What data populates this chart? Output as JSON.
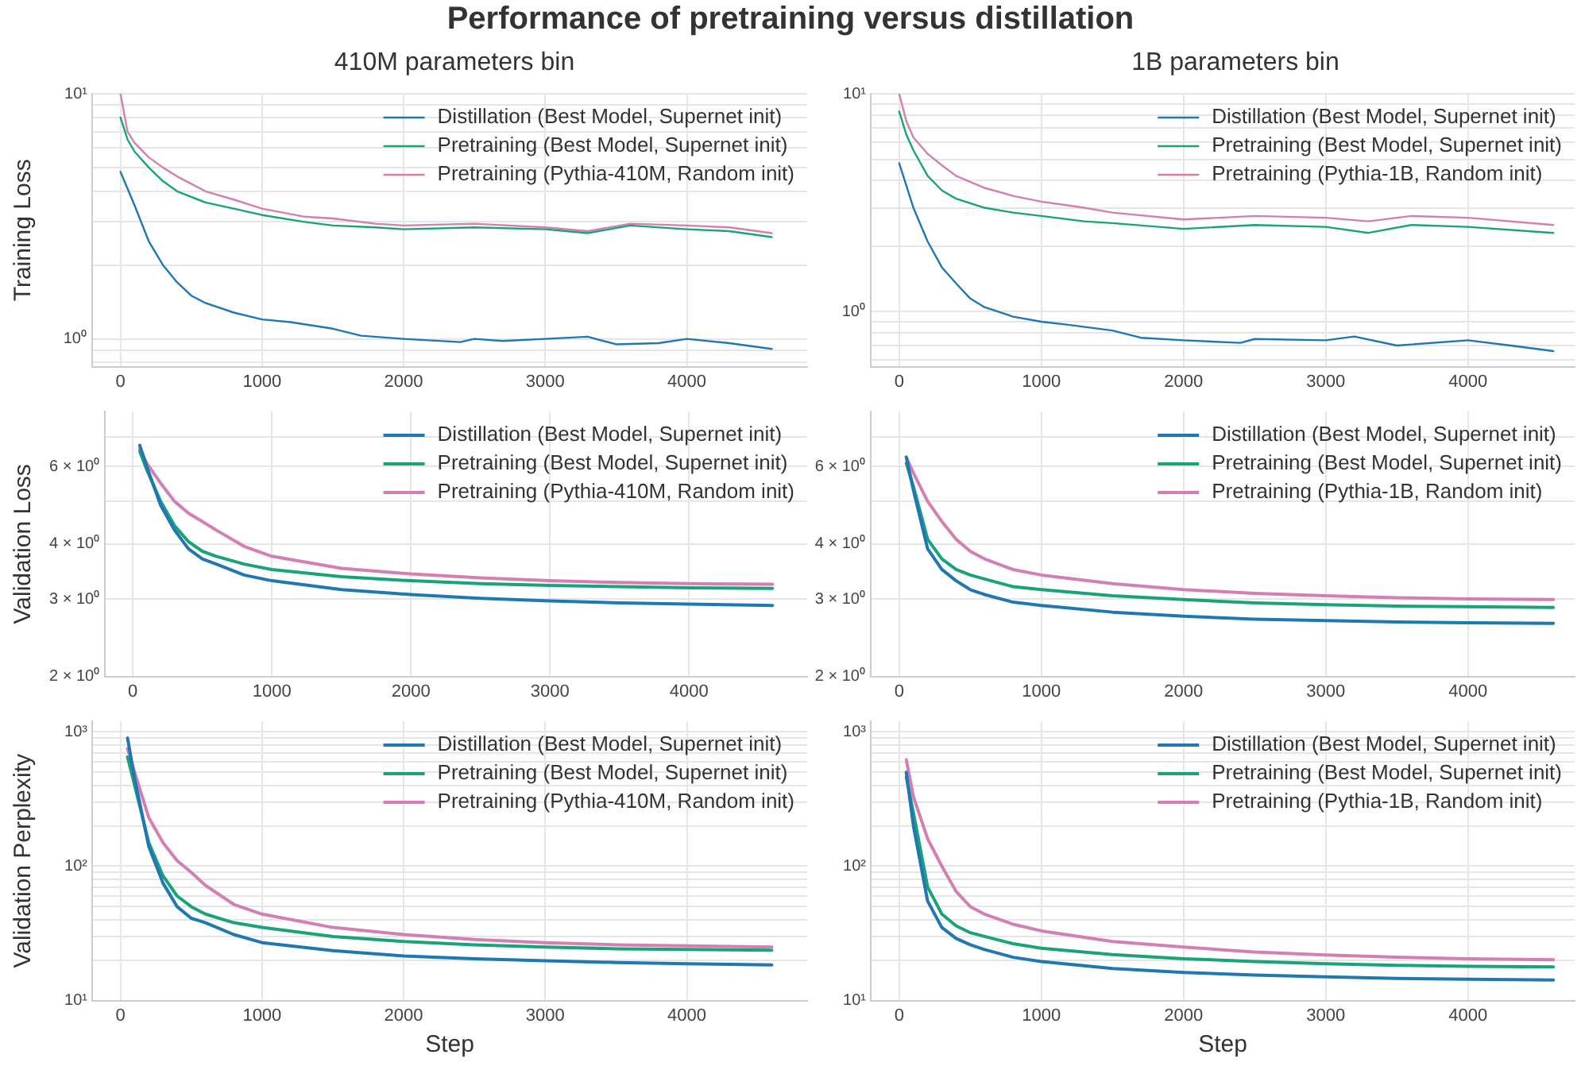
{
  "chart_data": [
    {
      "type": "line",
      "title": "Performance of pretraining versus distillation",
      "subtitle": "410M parameters bin",
      "ylabel": "Training Loss",
      "log": "y",
      "grid": true,
      "legend": "top right",
      "line_style": "solid",
      "marker": "none",
      "xlim": [
        -200,
        4850
      ],
      "xticks": [
        0,
        1000,
        2000,
        3000,
        4000
      ],
      "ylim": [
        0.77,
        10
      ],
      "yticks": [
        {
          "value": 0.8,
          "label": null
        },
        {
          "value": 0.9,
          "label": null
        },
        {
          "value": 1,
          "label": "10⁰"
        },
        {
          "value": 2,
          "label": null
        },
        {
          "value": 3,
          "label": null
        },
        {
          "value": 4,
          "label": null
        },
        {
          "value": 5,
          "label": null
        },
        {
          "value": 6,
          "label": null
        },
        {
          "value": 7,
          "label": null
        },
        {
          "value": 8,
          "label": null
        },
        {
          "value": 9,
          "label": null
        },
        {
          "value": 10,
          "label": "10¹"
        }
      ],
      "series": [
        {
          "name": "Distillation (Best Model, Supernet init)",
          "color": "#1f77b4",
          "x": [
            0,
            50,
            100,
            200,
            300,
            400,
            500,
            600,
            800,
            1000,
            1200,
            1500,
            1700,
            2000,
            2400,
            2500,
            2700,
            3000,
            3300,
            3500,
            3800,
            4000,
            4300,
            4600
          ],
          "values": [
            4.8,
            4.1,
            3.5,
            2.5,
            2.0,
            1.7,
            1.5,
            1.4,
            1.28,
            1.2,
            1.17,
            1.1,
            1.03,
            1.0,
            0.97,
            1.0,
            0.98,
            1.0,
            1.02,
            0.95,
            0.96,
            1.0,
            0.96,
            0.91
          ]
        },
        {
          "name": "Pretraining (Best Model, Supernet init)",
          "color": "#1aa37a",
          "x": [
            0,
            50,
            100,
            200,
            300,
            400,
            600,
            800,
            1000,
            1300,
            1500,
            1800,
            2000,
            2500,
            3000,
            3300,
            3600,
            4000,
            4300,
            4600
          ],
          "values": [
            8,
            6.5,
            5.8,
            5.0,
            4.4,
            4.0,
            3.6,
            3.4,
            3.2,
            3.0,
            2.9,
            2.85,
            2.8,
            2.85,
            2.8,
            2.7,
            2.9,
            2.8,
            2.75,
            2.6
          ]
        },
        {
          "name": "Pretraining (Pythia-410M, Random init)",
          "color": "#d37fb3",
          "x": [
            0,
            50,
            100,
            200,
            300,
            400,
            600,
            800,
            1000,
            1300,
            1500,
            1800,
            2000,
            2500,
            3000,
            3300,
            3600,
            4000,
            4300,
            4600
          ],
          "values": [
            10,
            7,
            6.3,
            5.5,
            5.0,
            4.6,
            4.0,
            3.7,
            3.4,
            3.15,
            3.1,
            2.95,
            2.9,
            2.95,
            2.85,
            2.75,
            2.95,
            2.9,
            2.85,
            2.7
          ]
        }
      ]
    },
    {
      "type": "line",
      "subtitle": "1B parameters bin",
      "log": "y",
      "grid": true,
      "legend": "top right",
      "line_style": "solid",
      "marker": "none",
      "xlim": [
        -200,
        4750
      ],
      "xticks": [
        0,
        1000,
        2000,
        3000,
        4000
      ],
      "ylim": [
        0.56,
        10
      ],
      "yticks": [
        {
          "value": 0.6,
          "label": null
        },
        {
          "value": 0.7,
          "label": null
        },
        {
          "value": 0.8,
          "label": null
        },
        {
          "value": 0.9,
          "label": null
        },
        {
          "value": 1,
          "label": "10⁰"
        },
        {
          "value": 2,
          "label": null
        },
        {
          "value": 3,
          "label": null
        },
        {
          "value": 4,
          "label": null
        },
        {
          "value": 5,
          "label": null
        },
        {
          "value": 6,
          "label": null
        },
        {
          "value": 7,
          "label": null
        },
        {
          "value": 8,
          "label": null
        },
        {
          "value": 9,
          "label": null
        },
        {
          "value": 10,
          "label": "10¹"
        }
      ],
      "series": [
        {
          "name": "Distillation (Best Model, Supernet init)",
          "color": "#1f77b4",
          "x": [
            0,
            50,
            100,
            200,
            300,
            400,
            500,
            600,
            800,
            1000,
            1200,
            1500,
            1700,
            2000,
            2400,
            2500,
            3000,
            3200,
            3500,
            4000,
            4300,
            4600
          ],
          "values": [
            4.8,
            3.8,
            3.0,
            2.1,
            1.6,
            1.35,
            1.15,
            1.05,
            0.95,
            0.9,
            0.87,
            0.82,
            0.76,
            0.74,
            0.72,
            0.75,
            0.74,
            0.77,
            0.7,
            0.74,
            0.7,
            0.66
          ]
        },
        {
          "name": "Pretraining (Best Model, Supernet init)",
          "color": "#1aa37a",
          "x": [
            0,
            50,
            100,
            200,
            300,
            400,
            600,
            800,
            1000,
            1300,
            1500,
            2000,
            2500,
            3000,
            3300,
            3600,
            4000,
            4600
          ],
          "values": [
            8.3,
            6.5,
            5.5,
            4.2,
            3.6,
            3.3,
            3.0,
            2.85,
            2.75,
            2.6,
            2.55,
            2.4,
            2.5,
            2.45,
            2.3,
            2.5,
            2.45,
            2.3
          ]
        },
        {
          "name": "Pretraining (Pythia-1B, Random init)",
          "color": "#d37fb3",
          "x": [
            0,
            50,
            100,
            200,
            300,
            400,
            600,
            800,
            1000,
            1300,
            1500,
            2000,
            2500,
            3000,
            3300,
            3600,
            4000,
            4600
          ],
          "values": [
            10,
            7.5,
            6.3,
            5.3,
            4.7,
            4.2,
            3.7,
            3.4,
            3.2,
            3.0,
            2.85,
            2.65,
            2.75,
            2.7,
            2.6,
            2.75,
            2.7,
            2.5
          ]
        }
      ]
    },
    {
      "type": "line",
      "ylabel": "Validation Loss",
      "log": "y",
      "grid": true,
      "legend": "top right",
      "line_style": "solid",
      "marker": "none",
      "xlim": [
        -200,
        4850
      ],
      "xticks": [
        0,
        1000,
        2000,
        3000,
        4000
      ],
      "ylim": [
        2,
        8
      ],
      "yticks": [
        {
          "value": 2,
          "label": "2 × 10⁰"
        },
        {
          "value": 3,
          "label": "3 × 10⁰"
        },
        {
          "value": 4,
          "label": "4 × 10⁰"
        },
        {
          "value": 5,
          "label": null
        },
        {
          "value": 6,
          "label": "6 × 10⁰"
        },
        {
          "value": 7,
          "label": null
        }
      ],
      "series": [
        {
          "name": "Distillation (Best Model, Supernet init)",
          "color": "#1f77b4",
          "x": [
            50,
            100,
            200,
            300,
            400,
            500,
            600,
            800,
            1000,
            1500,
            2000,
            2500,
            3000,
            3500,
            4000,
            4600
          ],
          "values": [
            6.7,
            6.0,
            4.9,
            4.3,
            3.9,
            3.7,
            3.6,
            3.4,
            3.3,
            3.15,
            3.07,
            3.01,
            2.97,
            2.94,
            2.92,
            2.9
          ]
        },
        {
          "name": "Pretraining (Best Model, Supernet init)",
          "color": "#1aa37a",
          "x": [
            50,
            100,
            200,
            300,
            400,
            500,
            600,
            800,
            1000,
            1500,
            2000,
            2500,
            3000,
            3500,
            4000,
            4600
          ],
          "values": [
            6.5,
            5.9,
            5.0,
            4.4,
            4.05,
            3.85,
            3.75,
            3.6,
            3.5,
            3.37,
            3.3,
            3.25,
            3.22,
            3.2,
            3.18,
            3.17
          ]
        },
        {
          "name": "Pretraining (Pythia-410M, Random init)",
          "color": "#d37fb3",
          "x": [
            50,
            100,
            200,
            300,
            400,
            500,
            600,
            800,
            1000,
            1500,
            2000,
            2500,
            3000,
            3500,
            4000,
            4600
          ],
          "values": [
            6.6,
            6.1,
            5.5,
            5.0,
            4.7,
            4.5,
            4.3,
            3.95,
            3.75,
            3.52,
            3.42,
            3.35,
            3.3,
            3.27,
            3.25,
            3.24
          ]
        }
      ]
    },
    {
      "type": "line",
      "log": "y",
      "grid": true,
      "legend": "top right",
      "line_style": "solid",
      "marker": "none",
      "xlim": [
        -200,
        4750
      ],
      "xticks": [
        0,
        1000,
        2000,
        3000,
        4000
      ],
      "ylim": [
        2,
        8
      ],
      "yticks": [
        {
          "value": 2,
          "label": "2 × 10⁰"
        },
        {
          "value": 3,
          "label": "3 × 10⁰"
        },
        {
          "value": 4,
          "label": "4 × 10⁰"
        },
        {
          "value": 5,
          "label": null
        },
        {
          "value": 6,
          "label": "6 × 10⁰"
        },
        {
          "value": 7,
          "label": null
        }
      ],
      "series": [
        {
          "name": "Distillation (Best Model, Supernet init)",
          "color": "#1f77b4",
          "x": [
            50,
            100,
            200,
            300,
            400,
            500,
            600,
            800,
            1000,
            1500,
            2000,
            2500,
            3000,
            3500,
            4000,
            4600
          ],
          "values": [
            6.3,
            5.3,
            3.9,
            3.5,
            3.3,
            3.15,
            3.07,
            2.95,
            2.9,
            2.8,
            2.74,
            2.7,
            2.68,
            2.66,
            2.65,
            2.64
          ]
        },
        {
          "name": "Pretraining (Best Model, Supernet init)",
          "color": "#1aa37a",
          "x": [
            50,
            100,
            200,
            300,
            400,
            500,
            600,
            800,
            1000,
            1500,
            2000,
            2500,
            3000,
            3500,
            4000,
            4600
          ],
          "values": [
            6.1,
            5.4,
            4.1,
            3.7,
            3.5,
            3.4,
            3.33,
            3.2,
            3.15,
            3.05,
            2.99,
            2.94,
            2.91,
            2.89,
            2.88,
            2.87
          ]
        },
        {
          "name": "Pretraining (Pythia-1B, Random init)",
          "color": "#d37fb3",
          "x": [
            50,
            100,
            200,
            300,
            400,
            500,
            600,
            800,
            1000,
            1500,
            2000,
            2500,
            3000,
            3500,
            4000,
            4600
          ],
          "values": [
            6.3,
            5.8,
            5.0,
            4.5,
            4.1,
            3.85,
            3.7,
            3.5,
            3.4,
            3.25,
            3.15,
            3.09,
            3.05,
            3.02,
            3.0,
            2.99
          ]
        }
      ]
    },
    {
      "type": "line",
      "xlabel": "Step",
      "ylabel": "Validation Perplexity",
      "log": "y",
      "grid": true,
      "legend": "top right",
      "line_style": "solid",
      "marker": "none",
      "xlim": [
        -200,
        4850
      ],
      "xticks": [
        0,
        1000,
        2000,
        3000,
        4000
      ],
      "ylim": [
        10,
        1200
      ],
      "yticks": [
        {
          "value": 10,
          "label": "10¹"
        },
        {
          "value": 20,
          "label": null
        },
        {
          "value": 30,
          "label": null
        },
        {
          "value": 40,
          "label": null
        },
        {
          "value": 50,
          "label": null
        },
        {
          "value": 60,
          "label": null
        },
        {
          "value": 70,
          "label": null
        },
        {
          "value": 80,
          "label": null
        },
        {
          "value": 90,
          "label": null
        },
        {
          "value": 100,
          "label": "10²"
        },
        {
          "value": 200,
          "label": null
        },
        {
          "value": 300,
          "label": null
        },
        {
          "value": 400,
          "label": null
        },
        {
          "value": 500,
          "label": null
        },
        {
          "value": 600,
          "label": null
        },
        {
          "value": 700,
          "label": null
        },
        {
          "value": 800,
          "label": null
        },
        {
          "value": 900,
          "label": null
        },
        {
          "value": 1000,
          "label": "10³"
        }
      ],
      "series": [
        {
          "name": "Distillation (Best Model, Supernet init)",
          "color": "#1f77b4",
          "x": [
            50,
            100,
            200,
            300,
            400,
            500,
            600,
            800,
            1000,
            1500,
            2000,
            2500,
            3000,
            3500,
            4000,
            4600
          ],
          "values": [
            900,
            450,
            140,
            75,
            50,
            41,
            38,
            31,
            27,
            23.5,
            21.5,
            20.5,
            19.8,
            19.2,
            18.8,
            18.4
          ]
        },
        {
          "name": "Pretraining (Best Model, Supernet init)",
          "color": "#1aa37a",
          "x": [
            50,
            100,
            200,
            300,
            400,
            500,
            600,
            800,
            1000,
            1500,
            2000,
            2500,
            3000,
            3500,
            4000,
            4600
          ],
          "values": [
            650,
            400,
            150,
            85,
            60,
            50,
            44,
            38,
            35,
            30,
            27.5,
            26,
            25,
            24.3,
            24,
            23.7
          ]
        },
        {
          "name": "Pretraining (Pythia-410M, Random init)",
          "color": "#d37fb3",
          "x": [
            50,
            100,
            200,
            300,
            400,
            500,
            600,
            800,
            1000,
            1500,
            2000,
            2500,
            3000,
            3500,
            4000,
            4600
          ],
          "values": [
            750,
            500,
            230,
            150,
            110,
            90,
            72,
            52,
            44,
            35,
            31,
            28.5,
            27,
            26,
            25.5,
            25
          ]
        }
      ]
    },
    {
      "type": "line",
      "xlabel": "Step",
      "log": "y",
      "grid": true,
      "legend": "top right",
      "line_style": "solid",
      "marker": "none",
      "xlim": [
        -200,
        4750
      ],
      "xticks": [
        0,
        1000,
        2000,
        3000,
        4000
      ],
      "ylim": [
        10,
        1200
      ],
      "yticks": [
        {
          "value": 10,
          "label": "10¹"
        },
        {
          "value": 20,
          "label": null
        },
        {
          "value": 30,
          "label": null
        },
        {
          "value": 40,
          "label": null
        },
        {
          "value": 50,
          "label": null
        },
        {
          "value": 60,
          "label": null
        },
        {
          "value": 70,
          "label": null
        },
        {
          "value": 80,
          "label": null
        },
        {
          "value": 90,
          "label": null
        },
        {
          "value": 100,
          "label": "10²"
        },
        {
          "value": 200,
          "label": null
        },
        {
          "value": 300,
          "label": null
        },
        {
          "value": 400,
          "label": null
        },
        {
          "value": 500,
          "label": null
        },
        {
          "value": 600,
          "label": null
        },
        {
          "value": 700,
          "label": null
        },
        {
          "value": 800,
          "label": null
        },
        {
          "value": 900,
          "label": null
        },
        {
          "value": 1000,
          "label": "10³"
        }
      ],
      "series": [
        {
          "name": "Distillation (Best Model, Supernet init)",
          "color": "#1f77b4",
          "x": [
            50,
            100,
            200,
            300,
            400,
            500,
            600,
            800,
            1000,
            1500,
            2000,
            2500,
            3000,
            3500,
            4000,
            4600
          ],
          "values": [
            500,
            200,
            55,
            35,
            29,
            26,
            24,
            21,
            19.5,
            17.3,
            16.2,
            15.5,
            15,
            14.6,
            14.4,
            14.2
          ]
        },
        {
          "name": "Pretraining (Best Model, Supernet init)",
          "color": "#1aa37a",
          "x": [
            50,
            100,
            200,
            300,
            400,
            500,
            600,
            800,
            1000,
            1500,
            2000,
            2500,
            3000,
            3500,
            4000,
            4600
          ],
          "values": [
            460,
            250,
            70,
            44,
            36,
            32,
            30,
            26.5,
            24.5,
            22,
            20.5,
            19.5,
            18.8,
            18.3,
            18,
            17.8
          ]
        },
        {
          "name": "Pretraining (Pythia-1B, Random init)",
          "color": "#d37fb3",
          "x": [
            50,
            100,
            200,
            300,
            400,
            500,
            600,
            800,
            1000,
            1500,
            2000,
            2500,
            3000,
            3500,
            4000,
            4600
          ],
          "values": [
            620,
            330,
            160,
            100,
            65,
            50,
            44,
            37,
            33,
            27.5,
            25,
            23,
            21.8,
            21,
            20.5,
            20.1
          ]
        }
      ]
    }
  ]
}
